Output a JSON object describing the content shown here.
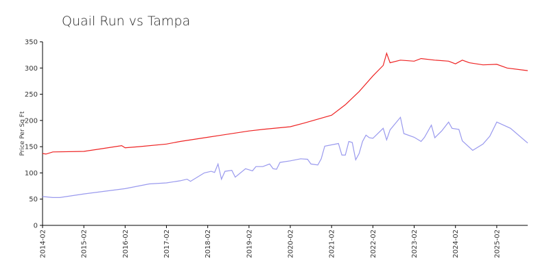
{
  "chart_data": {
    "type": "line",
    "title": "Quail Run vs Tampa",
    "y_label": "Price Per Sq Ft",
    "xlim": [
      "2014-02",
      "2025-11"
    ],
    "xticks": [
      "2014-02",
      "2015-02",
      "2016-02",
      "2017-02",
      "2018-02",
      "2019-02",
      "2020-02",
      "2021-02",
      "2022-02",
      "2023-02",
      "2024-02",
      "2025-02"
    ],
    "ylim": [
      0,
      350
    ],
    "yticks": [
      0,
      50,
      100,
      150,
      200,
      250,
      300,
      350
    ],
    "series": [
      {
        "color": "#ee2222",
        "x": [
          "2014-02",
          "2014-03",
          "2014-05",
          "2015-02",
          "2015-06",
          "2016-01",
          "2016-02",
          "2016-06",
          "2017-02",
          "2017-06",
          "2018-02",
          "2018-06",
          "2019-02",
          "2019-06",
          "2020-02",
          "2020-06",
          "2021-02",
          "2021-06",
          "2021-10",
          "2022-02",
          "2022-05",
          "2022-06",
          "2022-07",
          "2022-10",
          "2023-02",
          "2023-04",
          "2023-08",
          "2023-12",
          "2024-02",
          "2024-04",
          "2024-06",
          "2024-10",
          "2025-02",
          "2025-05",
          "2025-11"
        ],
        "values": [
          137,
          136,
          140,
          141,
          145,
          152,
          148,
          150,
          155,
          160,
          168,
          172,
          180,
          183,
          188,
          195,
          210,
          230,
          255,
          285,
          305,
          328,
          310,
          315,
          313,
          318,
          315,
          313,
          308,
          315,
          310,
          306,
          307,
          300,
          295
        ]
      },
      {
        "color": "#9999ee",
        "x": [
          "2014-02",
          "2014-05",
          "2014-07",
          "2015-02",
          "2016-02",
          "2016-09",
          "2017-02",
          "2017-06",
          "2017-08",
          "2017-09",
          "2018-01",
          "2018-03",
          "2018-04",
          "2018-05",
          "2018-06",
          "2018-07",
          "2018-09",
          "2018-10",
          "2019-01",
          "2019-03",
          "2019-04",
          "2019-06",
          "2019-08",
          "2019-09",
          "2019-10",
          "2019-11",
          "2020-02",
          "2020-05",
          "2020-07",
          "2020-08",
          "2020-10",
          "2020-11",
          "2020-12",
          "2021-04",
          "2021-05",
          "2021-06",
          "2021-07",
          "2021-08",
          "2021-09",
          "2021-10",
          "2021-11",
          "2021-12",
          "2022-01",
          "2022-02",
          "2022-05",
          "2022-06",
          "2022-07",
          "2022-10",
          "2022-11",
          "2023-02",
          "2023-04",
          "2023-05",
          "2023-07",
          "2023-08",
          "2023-10",
          "2023-12",
          "2024-01",
          "2024-03",
          "2024-04",
          "2024-07",
          "2024-10",
          "2024-12",
          "2025-02",
          "2025-06",
          "2025-11"
        ],
        "values": [
          55,
          53,
          53,
          60,
          70,
          79,
          81,
          85,
          88,
          84,
          100,
          103,
          101,
          117,
          88,
          103,
          105,
          92,
          108,
          104,
          112,
          112,
          117,
          108,
          107,
          120,
          123,
          127,
          126,
          117,
          115,
          127,
          151,
          156,
          134,
          134,
          160,
          158,
          125,
          137,
          160,
          172,
          167,
          166,
          185,
          163,
          182,
          206,
          175,
          168,
          160,
          168,
          191,
          167,
          180,
          197,
          185,
          183,
          161,
          143,
          155,
          170,
          197,
          185,
          157
        ]
      }
    ]
  }
}
